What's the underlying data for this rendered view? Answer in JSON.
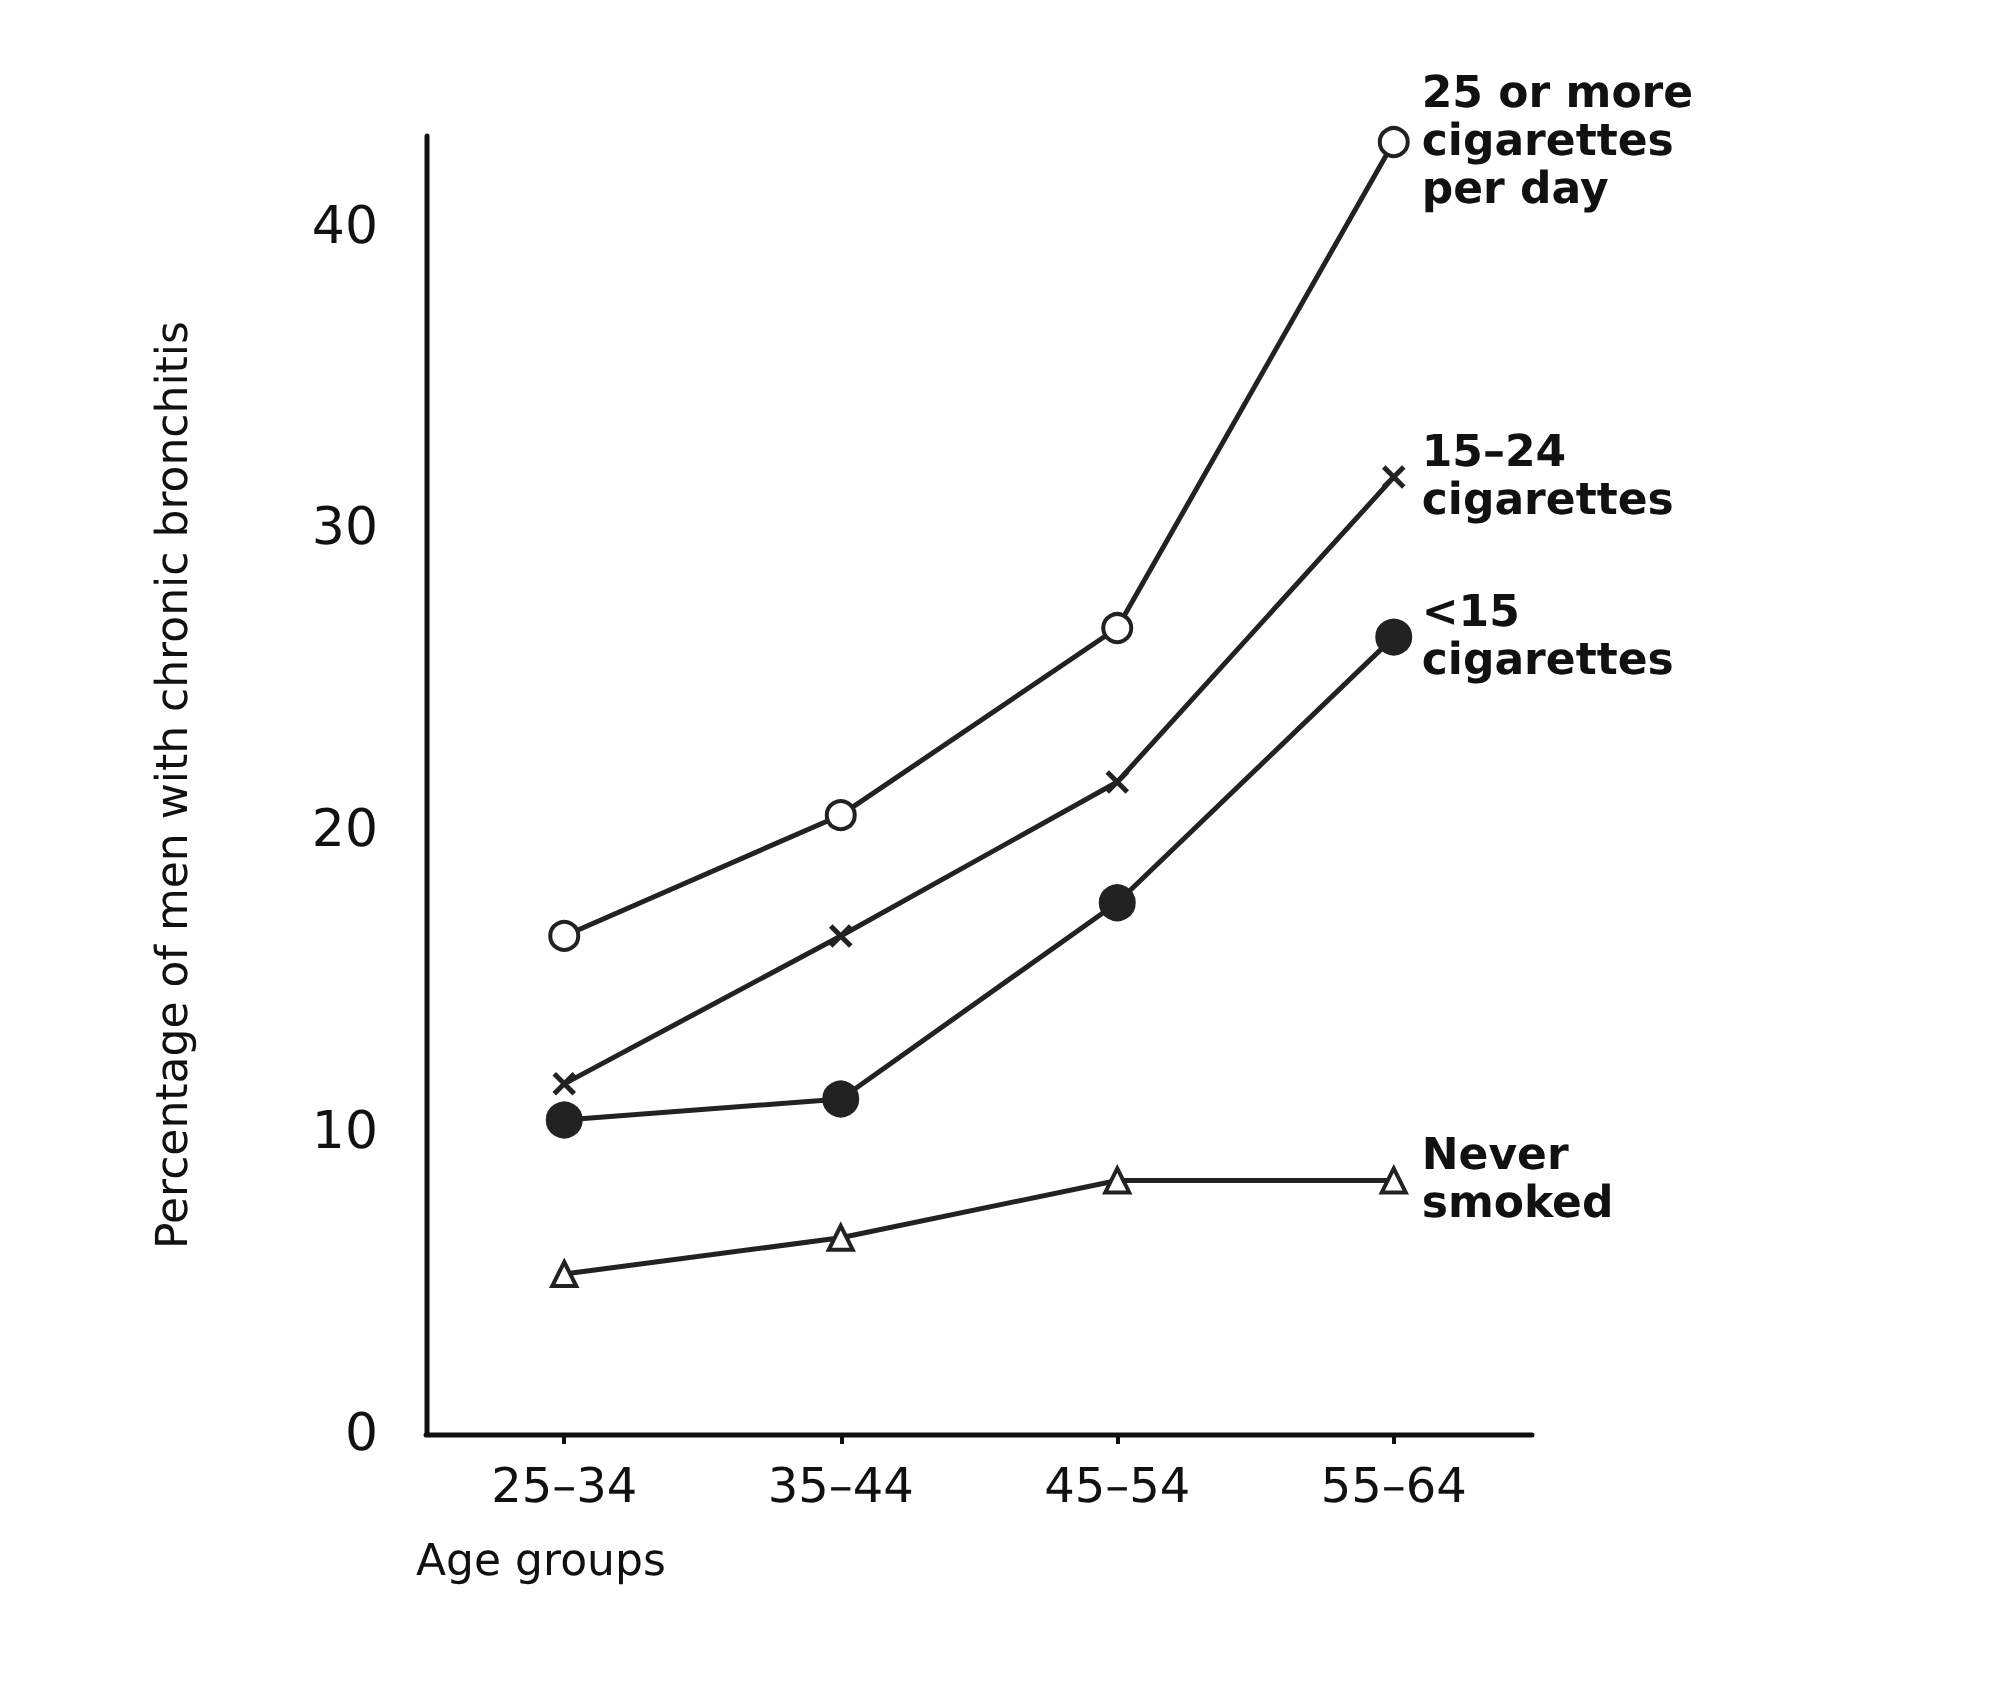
{
  "chart_data": {
    "type": "line",
    "xlabel": "Age groups",
    "ylabel": "Percentage of men with chronic bronchitis",
    "categories": [
      "25–34",
      "35–44",
      "45–54",
      "55–64"
    ],
    "series": [
      {
        "name": "25 or more\ncigarettes\nper day",
        "color": "#222222",
        "marker": "circle",
        "values": [
          16.5,
          20.5,
          26.7,
          42.8
        ]
      },
      {
        "name": "15–24\ncigarettes",
        "color": "#222222",
        "marker": "cross",
        "values": [
          11.6,
          16.5,
          21.6,
          31.7
        ]
      },
      {
        "name": "<15\ncigarettes",
        "color": "#222222",
        "marker": "filled_circle",
        "values": [
          10.4,
          11.1,
          17.6,
          26.4
        ]
      },
      {
        "name": "Never\nsmoked",
        "color": "#222222",
        "marker": "triangle",
        "values": [
          5.3,
          6.5,
          8.4,
          8.4
        ]
      }
    ],
    "ylim": [
      0,
      43
    ],
    "yticks": [
      0,
      10,
      20,
      30,
      40
    ],
    "grid": false,
    "legend": false
  }
}
